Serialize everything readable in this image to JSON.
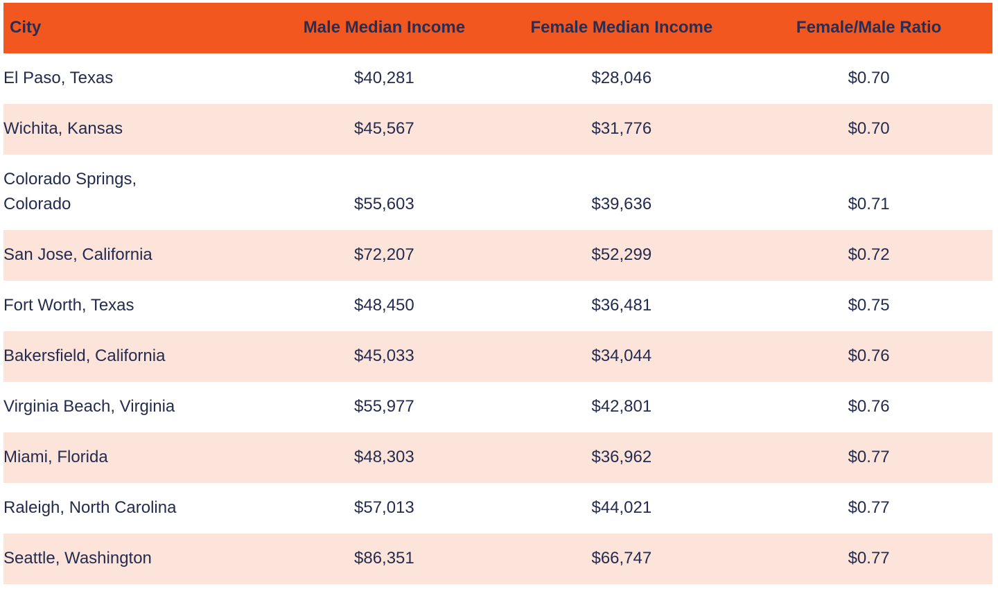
{
  "colors": {
    "header_bg": "#f1571f",
    "alt_row_bg": "#fce4da",
    "text": "#242b4e"
  },
  "table": {
    "columns": [
      {
        "key": "city",
        "label": "City"
      },
      {
        "key": "male_income",
        "label": "Male Median Income"
      },
      {
        "key": "female_income",
        "label": "Female Median Income"
      },
      {
        "key": "ratio",
        "label": "Female/Male Ratio"
      }
    ],
    "rows": [
      {
        "city": "El Paso, Texas",
        "male_income": "$40,281",
        "female_income": "$28,046",
        "ratio": "$0.70"
      },
      {
        "city": "Wichita, Kansas",
        "male_income": "$45,567",
        "female_income": "$31,776",
        "ratio": "$0.70"
      },
      {
        "city": "Colorado Springs,\nColorado",
        "male_income": "$55,603",
        "female_income": "$39,636",
        "ratio": "$0.71"
      },
      {
        "city": "San Jose, California",
        "male_income": "$72,207",
        "female_income": "$52,299",
        "ratio": "$0.72"
      },
      {
        "city": "Fort Worth, Texas",
        "male_income": "$48,450",
        "female_income": "$36,481",
        "ratio": "$0.75"
      },
      {
        "city": "Bakersfield, California",
        "male_income": "$45,033",
        "female_income": "$34,044",
        "ratio": "$0.76"
      },
      {
        "city": "Virginia Beach, Virginia",
        "male_income": "$55,977",
        "female_income": "$42,801",
        "ratio": "$0.76"
      },
      {
        "city": "Miami, Florida",
        "male_income": "$48,303",
        "female_income": "$36,962",
        "ratio": "$0.77"
      },
      {
        "city": "Raleigh, North Carolina",
        "male_income": "$57,013",
        "female_income": "$44,021",
        "ratio": "$0.77"
      },
      {
        "city": "Seattle, Washington",
        "male_income": "$86,351",
        "female_income": "$66,747",
        "ratio": "$0.77"
      }
    ]
  }
}
